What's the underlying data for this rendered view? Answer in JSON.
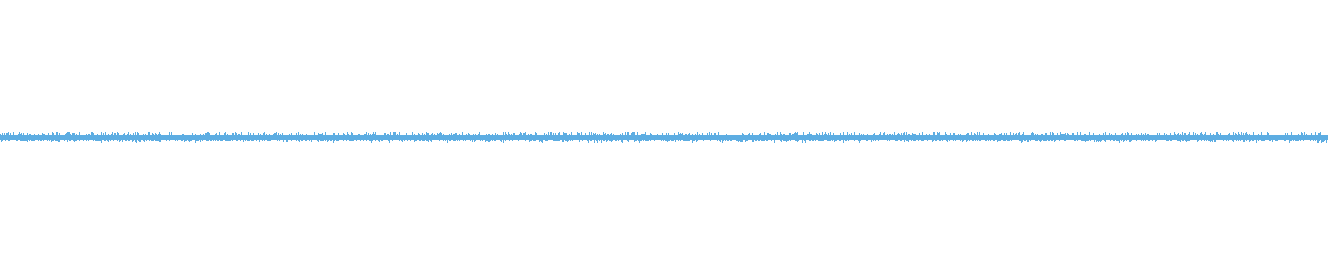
{
  "waveform": {
    "color": "#5DADE2",
    "background": "#FFFFFF"
  }
}
